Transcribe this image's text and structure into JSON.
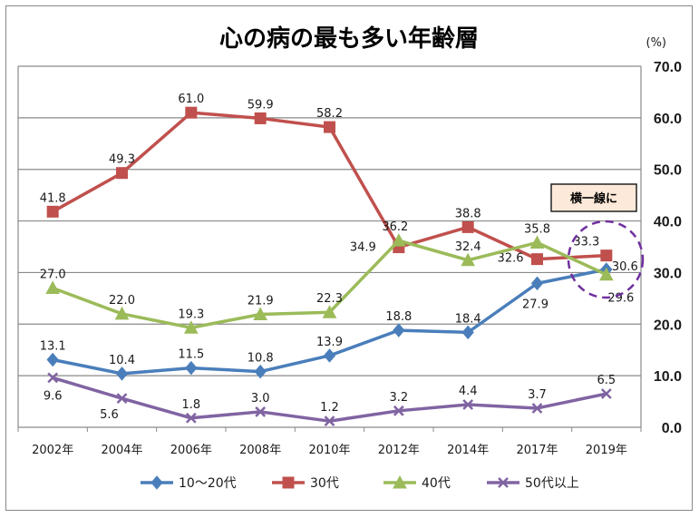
{
  "chart_data": {
    "type": "line",
    "title": "心の病の最も多い年齢層",
    "unit": "(%)",
    "categories": [
      "2002年",
      "2004年",
      "2006年",
      "2008年",
      "2010年",
      "2012年",
      "2014年",
      "2017年",
      "2019年"
    ],
    "ylim": [
      0,
      70
    ],
    "yticks": [
      "0.0",
      "10.0",
      "20.0",
      "30.0",
      "40.0",
      "50.0",
      "60.0",
      "70.0"
    ],
    "y_axis_side": "right",
    "grid": true,
    "legend_position": "bottom",
    "series": [
      {
        "name": "10～20代",
        "color": "#4a7ebb",
        "marker": "diamond",
        "values": [
          13.1,
          10.4,
          11.5,
          10.8,
          13.9,
          18.8,
          18.4,
          27.9,
          30.6
        ],
        "labels": [
          "13.1",
          "10.4",
          "11.5",
          "10.8",
          "13.9",
          "18.8",
          "18.4",
          "27.9",
          "30.6"
        ]
      },
      {
        "name": "30代",
        "color": "#c0504d",
        "marker": "square",
        "values": [
          41.8,
          49.3,
          61.0,
          59.9,
          58.2,
          34.9,
          38.8,
          32.6,
          33.3
        ],
        "labels": [
          "41.8",
          "49.3",
          "61.0",
          "59.9",
          "58.2",
          "34.9",
          "38.8",
          "32.6",
          "33.3"
        ]
      },
      {
        "name": "40代",
        "color": "#9bbb59",
        "marker": "triangle",
        "values": [
          27.0,
          22.0,
          19.3,
          21.9,
          22.3,
          36.2,
          32.4,
          35.8,
          29.6
        ],
        "labels": [
          "27.0",
          "22.0",
          "19.3",
          "21.9",
          "22.3",
          "36.2",
          "32.4",
          "35.8",
          "29.6"
        ]
      },
      {
        "name": "50代以上",
        "color": "#8064a2",
        "marker": "x",
        "values": [
          9.6,
          5.6,
          1.8,
          3.0,
          1.2,
          3.2,
          4.4,
          3.7,
          6.5
        ],
        "labels": [
          "9.6",
          "5.6",
          "1.8",
          "3.0",
          "1.2",
          "3.2",
          "4.4",
          "3.7",
          "6.5"
        ]
      }
    ],
    "annotation": {
      "text": "横一線に",
      "box_color": "#fde9d9",
      "circle_color": "#7030a0"
    }
  }
}
